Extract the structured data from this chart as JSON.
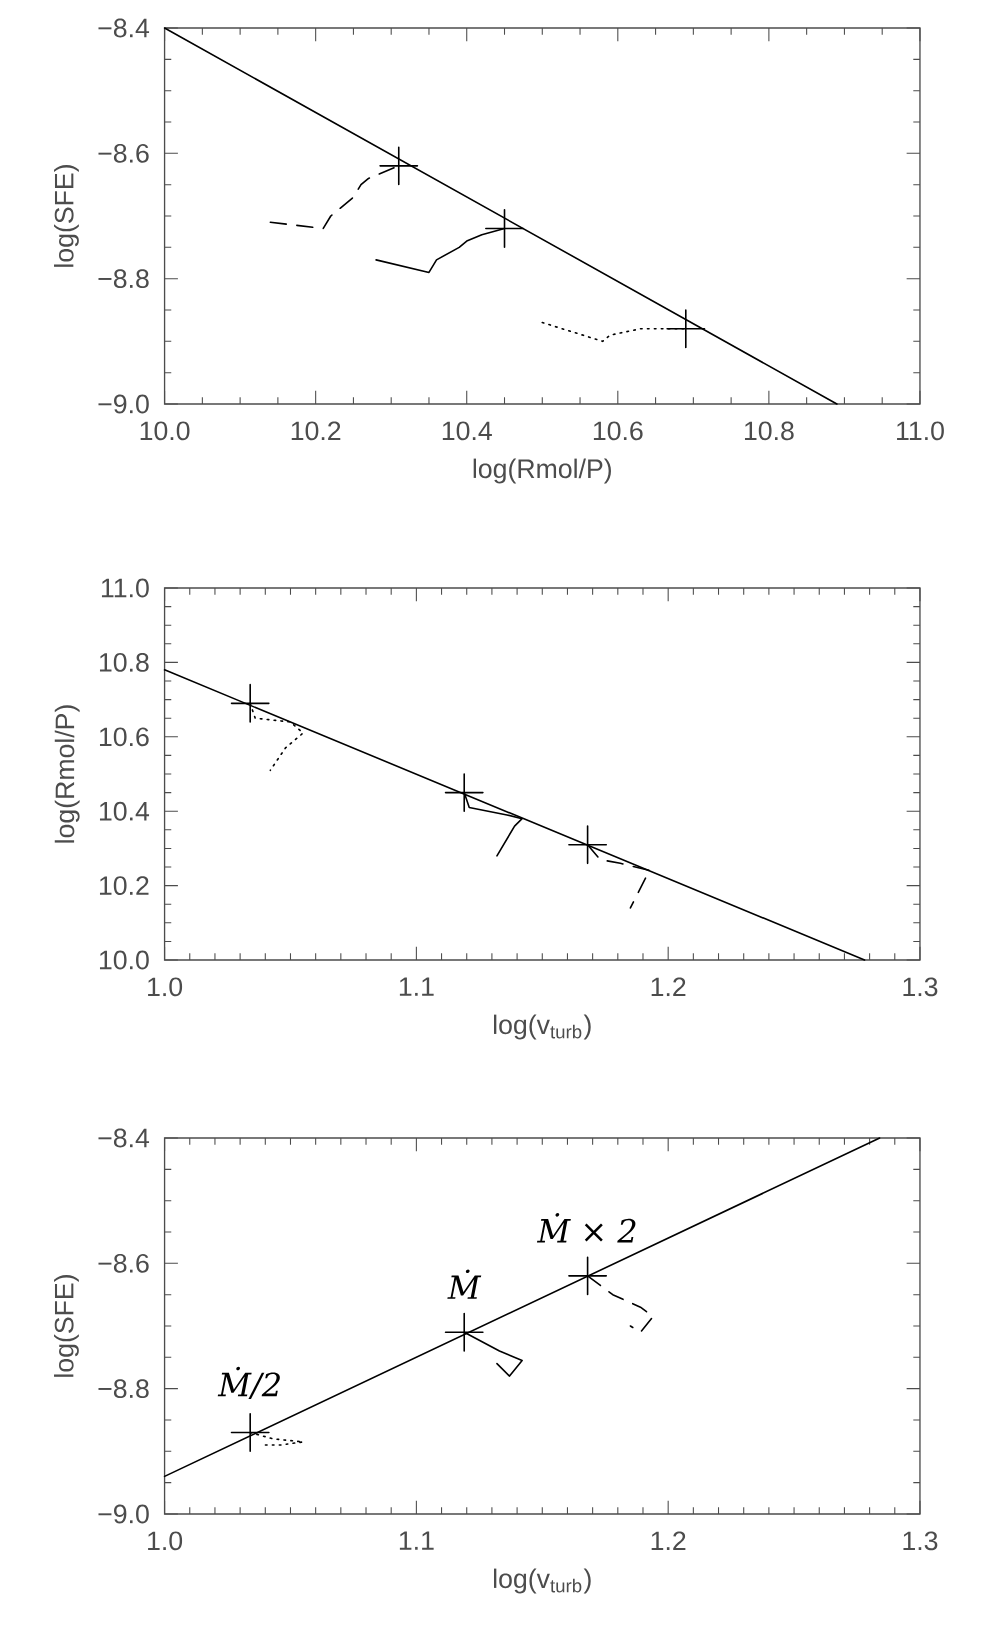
{
  "chart_data": [
    {
      "type": "line",
      "xlabel": "log(Rmol/P)",
      "ylabel": "log(SFE)",
      "xlim": [
        10.0,
        11.0
      ],
      "ylim": [
        -9.0,
        -8.4
      ],
      "xticks": [
        {
          "value": 10.0,
          "label": "10.0"
        },
        {
          "value": 10.2,
          "label": "10.2"
        },
        {
          "value": 10.4,
          "label": "10.4"
        },
        {
          "value": 10.6,
          "label": "10.6"
        },
        {
          "value": 10.8,
          "label": "10.8"
        },
        {
          "value": 11.0,
          "label": "11.0"
        }
      ],
      "yticks": [
        {
          "value": -9.0,
          "label": "−9.0"
        },
        {
          "value": -8.8,
          "label": "−8.8"
        },
        {
          "value": -8.6,
          "label": "−8.6"
        },
        {
          "value": -8.4,
          "label": "−8.4"
        }
      ],
      "series": [
        {
          "type": "line",
          "line_style": "solid",
          "marker": "none",
          "color": "#000000",
          "x": [
            10.0,
            10.89
          ],
          "values": [
            -8.4,
            -9.0
          ]
        },
        {
          "type": "scatter",
          "marker": "cross",
          "color": "#000000",
          "x": [
            10.31,
            10.45,
            10.69
          ],
          "values": [
            -8.62,
            -8.72,
            -8.88
          ]
        },
        {
          "type": "line",
          "line_style": "dashed",
          "marker": "none",
          "color": "#000000",
          "x": [
            10.14,
            10.21,
            10.22,
            10.25,
            10.26,
            10.27,
            10.31
          ],
          "values": [
            -8.71,
            -8.72,
            -8.7,
            -8.67,
            -8.65,
            -8.64,
            -8.62
          ]
        },
        {
          "type": "line",
          "line_style": "solid",
          "marker": "none",
          "color": "#000000",
          "x": [
            10.28,
            10.35,
            10.36,
            10.39,
            10.4,
            10.42,
            10.45
          ],
          "values": [
            -8.77,
            -8.79,
            -8.77,
            -8.75,
            -8.74,
            -8.73,
            -8.72
          ]
        },
        {
          "type": "line",
          "line_style": "dotted",
          "marker": "none",
          "color": "#000000",
          "x": [
            10.5,
            10.58,
            10.59,
            10.63,
            10.69
          ],
          "values": [
            -8.87,
            -8.9,
            -8.89,
            -8.88,
            -8.88
          ]
        }
      ]
    },
    {
      "type": "line",
      "xlabel": "log(v$_{turb}$)",
      "ylabel": "log(Rmol/P)",
      "xlim": [
        1.0,
        1.3
      ],
      "ylim": [
        10.0,
        11.0
      ],
      "xticks": [
        {
          "value": 1.0,
          "label": "1.0"
        },
        {
          "value": 1.1,
          "label": "1.1"
        },
        {
          "value": 1.2,
          "label": "1.2"
        },
        {
          "value": 1.3,
          "label": "1.3"
        }
      ],
      "yticks": [
        {
          "value": 10.0,
          "label": "10.0"
        },
        {
          "value": 10.2,
          "label": "10.2"
        },
        {
          "value": 10.4,
          "label": "10.4"
        },
        {
          "value": 10.6,
          "label": "10.6"
        },
        {
          "value": 10.8,
          "label": "10.8"
        },
        {
          "value": 11.0,
          "label": "11.0"
        }
      ],
      "series": [
        {
          "type": "line",
          "line_style": "solid",
          "marker": "none",
          "color": "#000000",
          "x": [
            1.0,
            1.278
          ],
          "values": [
            10.78,
            10.0
          ]
        },
        {
          "type": "scatter",
          "marker": "cross",
          "color": "#000000",
          "x": [
            1.034,
            1.119,
            1.168
          ],
          "values": [
            10.69,
            10.45,
            10.31
          ]
        },
        {
          "type": "line",
          "line_style": "dotted",
          "marker": "none",
          "color": "#000000",
          "x": [
            1.034,
            1.036,
            1.05,
            1.055,
            1.048,
            1.042
          ],
          "values": [
            10.69,
            10.65,
            10.64,
            10.61,
            10.57,
            10.51
          ]
        },
        {
          "type": "line",
          "line_style": "solid",
          "marker": "none",
          "color": "#000000",
          "x": [
            1.119,
            1.121,
            1.136,
            1.142,
            1.139,
            1.132
          ],
          "values": [
            10.45,
            10.41,
            10.39,
            10.38,
            10.36,
            10.28
          ]
        },
        {
          "type": "line",
          "line_style": "dashed",
          "marker": "none",
          "color": "#000000",
          "x": [
            1.168,
            1.173,
            1.181,
            1.193,
            1.191,
            1.185
          ],
          "values": [
            10.31,
            10.27,
            10.26,
            10.24,
            10.22,
            10.14
          ]
        }
      ]
    },
    {
      "type": "line",
      "xlabel": "log(v$_{turb}$)",
      "ylabel": "log(SFE)",
      "xlim": [
        1.0,
        1.3
      ],
      "ylim": [
        -9.0,
        -8.4
      ],
      "xticks": [
        {
          "value": 1.0,
          "label": "1.0"
        },
        {
          "value": 1.1,
          "label": "1.1"
        },
        {
          "value": 1.2,
          "label": "1.2"
        },
        {
          "value": 1.3,
          "label": "1.3"
        }
      ],
      "yticks": [
        {
          "value": -9.0,
          "label": "−9.0"
        },
        {
          "value": -8.8,
          "label": "−8.8"
        },
        {
          "value": -8.6,
          "label": "−8.6"
        },
        {
          "value": -8.4,
          "label": "−8.4"
        }
      ],
      "series": [
        {
          "type": "line",
          "line_style": "solid",
          "marker": "none",
          "color": "#000000",
          "x": [
            1.0,
            1.284
          ],
          "values": [
            -8.94,
            -8.4
          ]
        },
        {
          "type": "scatter",
          "marker": "cross",
          "color": "#000000",
          "x": [
            1.034,
            1.119,
            1.168
          ],
          "values": [
            -8.87,
            -8.71,
            -8.62
          ]
        },
        {
          "type": "line",
          "line_style": "dotted",
          "marker": "none",
          "color": "#000000",
          "x": [
            1.034,
            1.043,
            1.055,
            1.046,
            1.038
          ],
          "values": [
            -8.87,
            -8.88,
            -8.885,
            -8.89,
            -8.89
          ]
        },
        {
          "type": "line",
          "line_style": "solid",
          "marker": "none",
          "color": "#000000",
          "x": [
            1.119,
            1.133,
            1.142,
            1.137,
            1.132
          ],
          "values": [
            -8.71,
            -8.74,
            -8.755,
            -8.78,
            -8.76
          ]
        },
        {
          "type": "line",
          "line_style": "dashed",
          "marker": "none",
          "color": "#000000",
          "x": [
            1.168,
            1.178,
            1.189,
            1.194,
            1.189,
            1.185
          ],
          "values": [
            -8.62,
            -8.65,
            -8.67,
            -8.685,
            -8.71,
            -8.7
          ]
        }
      ],
      "annotations": [
        "Ṁ/2",
        "Ṁ",
        "Ṁ × 2"
      ]
    }
  ]
}
